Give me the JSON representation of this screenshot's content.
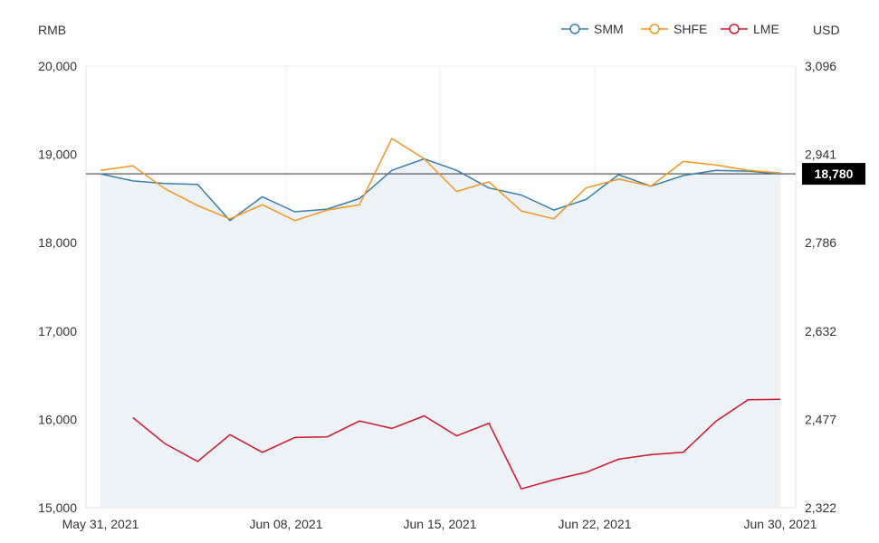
{
  "chart_data": {
    "type": "line",
    "left_unit": "RMB",
    "right_unit": "USD",
    "left_ylim": [
      15000,
      20000
    ],
    "right_ylim": [
      2322,
      3096
    ],
    "left_ticks": [
      "20,000",
      "19,000",
      "18,000",
      "17,000",
      "16,000",
      "15,000"
    ],
    "right_ticks": [
      "3,096",
      "2,941",
      "2,786",
      "2,632",
      "2,477",
      "2,322"
    ],
    "x_labels": [
      "May 31, 2021",
      "Jun 08, 2021",
      "Jun 15, 2021",
      "Jun 22, 2021",
      "Jun 30, 2021"
    ],
    "dates": [
      "May 31",
      "Jun 01",
      "Jun 02",
      "Jun 03",
      "Jun 04",
      "Jun 07",
      "Jun 08",
      "Jun 09",
      "Jun 10",
      "Jun 11",
      "Jun 15",
      "Jun 16",
      "Jun 17",
      "Jun 18",
      "Jun 21",
      "Jun 22",
      "Jun 23",
      "Jun 24",
      "Jun 25",
      "Jun 28",
      "Jun 29",
      "Jun 30"
    ],
    "series": [
      {
        "name": "SMM",
        "axis": "left",
        "color": "#3b7fa8",
        "values": [
          18780,
          18700,
          18670,
          18660,
          18250,
          18520,
          18350,
          18380,
          18500,
          18820,
          18950,
          18820,
          18620,
          18540,
          18370,
          18490,
          18770,
          18640,
          18760,
          18820,
          18810,
          18780
        ]
      },
      {
        "name": "SHFE",
        "axis": "left",
        "color": "#f5961e",
        "values": [
          18820,
          18870,
          18610,
          18420,
          18270,
          18430,
          18250,
          18370,
          18430,
          19180,
          18950,
          18580,
          18690,
          18360,
          18270,
          18620,
          18720,
          18640,
          18920,
          18880,
          18820,
          18790
        ]
      },
      {
        "name": "LME",
        "axis": "right",
        "color": "#d0142c",
        "values": [
          null,
          2480,
          2434,
          2403,
          2450,
          2419,
          2445,
          2446,
          2474,
          2461,
          2483,
          2448,
          2470,
          2355,
          2371,
          2384,
          2407,
          2415,
          2419,
          2473,
          2511,
          2512
        ]
      }
    ],
    "reference_label": "18,780",
    "reference_value": 18780,
    "grid": "vertical",
    "legend": "top-right"
  }
}
